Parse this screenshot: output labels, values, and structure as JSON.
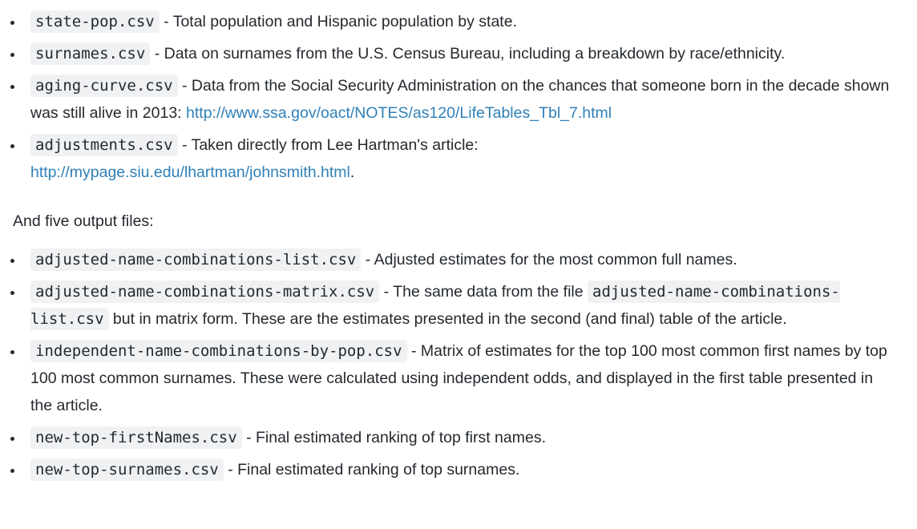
{
  "input_files": [
    {
      "file": "state-pop.csv",
      "desc": " - Total population and Hispanic population by state."
    },
    {
      "file": "surnames.csv",
      "desc": " - Data on surnames from the U.S. Census Bureau, including a breakdown by race/ethnicity."
    },
    {
      "file": "aging-curve.csv",
      "desc": " - Data from the Social Security Administration on the chances that someone born in the decade shown was still alive in 2013: ",
      "link": "http://www.ssa.gov/oact/NOTES/as120/LifeTables_Tbl_7.html"
    },
    {
      "file": "adjustments.csv",
      "desc": " - Taken directly from Lee Hartman's article: ",
      "link": "http://mypage.siu.edu/lhartman/johnsmith.html",
      "after": "."
    }
  ],
  "output_intro": "And five output files:",
  "output_files": [
    {
      "file": "adjusted-name-combinations-list.csv",
      "desc": " - Adjusted estimates for the most common full names."
    },
    {
      "file": "adjusted-name-combinations-matrix.csv",
      "desc": " - The same data from the file ",
      "file2": "adjusted-name-combinations-list.csv",
      "after": " but in matrix form. These are the estimates presented in the second (and final) table of the article."
    },
    {
      "file": "independent-name-combinations-by-pop.csv",
      "desc": " - Matrix of estimates for the top 100 most common first names by top 100 most common surnames. These were calculated using independent odds, and displayed in the first table presented in the article."
    },
    {
      "file": "new-top-firstNames.csv",
      "desc": " - Final estimated ranking of top first names."
    },
    {
      "file": "new-top-surnames.csv",
      "desc": " - Final estimated ranking of top surnames."
    }
  ]
}
